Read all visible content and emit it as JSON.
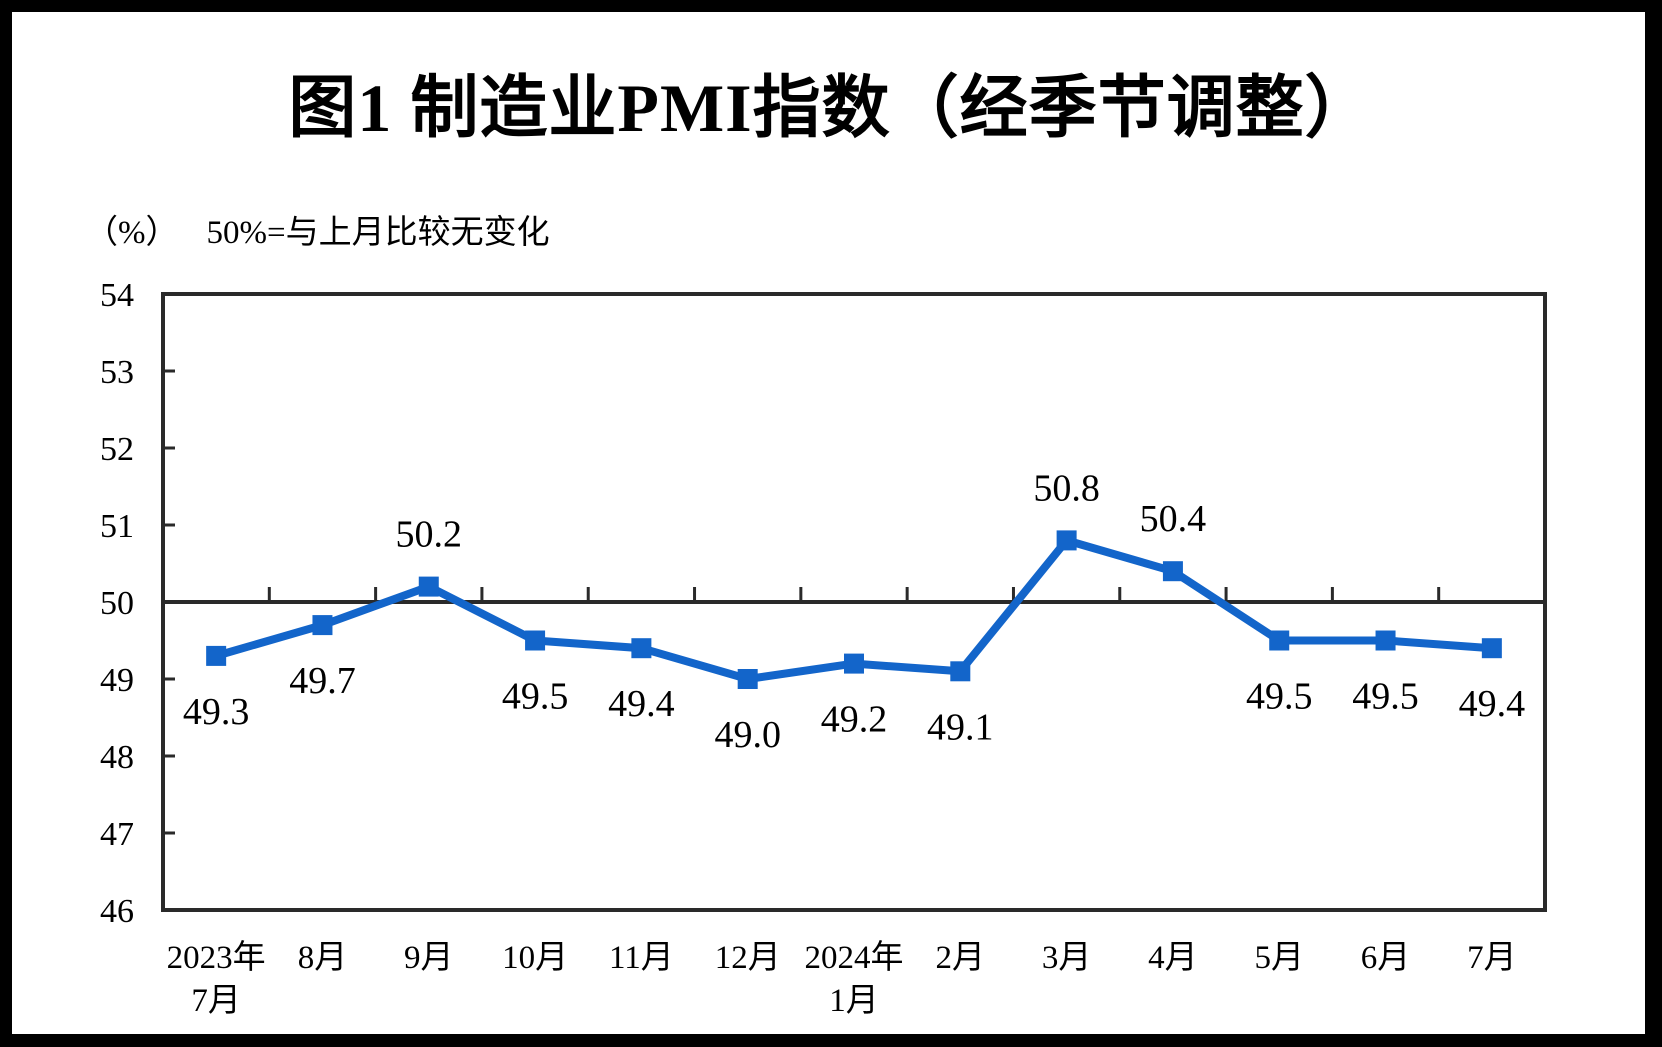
{
  "title": "图1  制造业PMI指数（经季节调整）",
  "subtitle": {
    "unit": "（%）",
    "note": "50%=与上月比较无变化"
  },
  "chart_data": {
    "type": "line",
    "series_name": "制造业PMI指数",
    "categories": [
      [
        "2023年",
        "7月"
      ],
      [
        "8月"
      ],
      [
        "9月"
      ],
      [
        "10月"
      ],
      [
        "11月"
      ],
      [
        "12月"
      ],
      [
        "2024年",
        "1月"
      ],
      [
        "2月"
      ],
      [
        "3月"
      ],
      [
        "4月"
      ],
      [
        "5月"
      ],
      [
        "6月"
      ],
      [
        "7月"
      ]
    ],
    "values": [
      49.3,
      49.7,
      50.2,
      49.5,
      49.4,
      49.0,
      49.2,
      49.1,
      50.8,
      50.4,
      49.5,
      49.5,
      49.4
    ],
    "data_labels": [
      "49.3",
      "49.7",
      "50.2",
      "49.5",
      "49.4",
      "49.0",
      "49.2",
      "49.1",
      "50.8",
      "50.4",
      "49.5",
      "49.5",
      "49.4"
    ],
    "label_positions": [
      "below",
      "below",
      "above",
      "below",
      "below",
      "below",
      "below",
      "below",
      "above",
      "above",
      "below",
      "below",
      "below"
    ],
    "ylim": [
      46,
      54
    ],
    "ytick_step": 1,
    "ytick_labels": [
      "46",
      "47",
      "48",
      "49",
      "50",
      "51",
      "52",
      "53",
      "54"
    ],
    "reference_line": 50,
    "grid": false,
    "legend": "none",
    "line_color": "#1365CA",
    "marker": "square",
    "axis_color": "#2A2A2A",
    "label_color": "#000000"
  }
}
